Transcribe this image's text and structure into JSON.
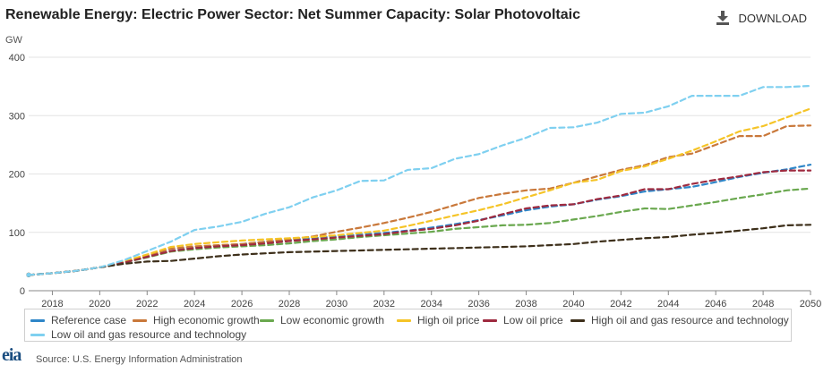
{
  "header": {
    "title": "Renewable Energy: Electric Power Sector: Net Summer Capacity: Solar Photovoltaic",
    "download_label": "DOWNLOAD",
    "unit_label": "GW"
  },
  "footer": {
    "logo_text": "eia",
    "source": "Source: U.S. Energy Information Administration"
  },
  "chart_data": {
    "type": "line",
    "title": "Renewable Energy: Electric Power Sector: Net Summer Capacity: Solar Photovoltaic",
    "ylabel": "GW",
    "xlabel": "",
    "xlim": [
      2017,
      2050
    ],
    "ylim": [
      0,
      400
    ],
    "y_ticks": [
      0,
      100,
      200,
      300,
      400
    ],
    "x_ticks": [
      2018,
      2020,
      2022,
      2024,
      2026,
      2028,
      2030,
      2032,
      2034,
      2036,
      2038,
      2040,
      2042,
      2044,
      2046,
      2048,
      2050
    ],
    "grid": "horizontal",
    "legend_position": "bottom",
    "x": [
      2017,
      2018,
      2019,
      2020,
      2021,
      2022,
      2023,
      2024,
      2025,
      2026,
      2027,
      2028,
      2029,
      2030,
      2031,
      2032,
      2033,
      2034,
      2035,
      2036,
      2037,
      2038,
      2039,
      2040,
      2041,
      2042,
      2043,
      2044,
      2045,
      2046,
      2047,
      2048,
      2049,
      2050
    ],
    "series": [
      {
        "name": "Reference case",
        "color": "#2e86c8",
        "values": [
          27,
          30,
          34,
          40,
          48,
          58,
          68,
          74,
          77,
          80,
          84,
          87,
          90,
          93,
          96,
          99,
          103,
          108,
          114,
          121,
          129,
          138,
          144,
          148,
          156,
          162,
          170,
          174,
          178,
          186,
          195,
          202,
          208,
          216
        ]
      },
      {
        "name": "High economic growth",
        "color": "#c9783a",
        "values": [
          27,
          30,
          34,
          40,
          48,
          60,
          72,
          76,
          78,
          80,
          84,
          88,
          93,
          101,
          108,
          116,
          125,
          135,
          147,
          159,
          166,
          172,
          175,
          185,
          196,
          207,
          215,
          229,
          235,
          250,
          265,
          265,
          282,
          283
        ]
      },
      {
        "name": "Low economic growth",
        "color": "#6aa84f",
        "values": [
          27,
          30,
          34,
          40,
          48,
          57,
          67,
          71,
          74,
          76,
          78,
          81,
          85,
          88,
          92,
          95,
          98,
          101,
          106,
          109,
          112,
          113,
          116,
          122,
          128,
          135,
          141,
          140,
          146,
          152,
          159,
          165,
          172,
          175
        ]
      },
      {
        "name": "High oil price",
        "color": "#f5c427",
        "values": [
          27,
          30,
          34,
          40,
          50,
          62,
          75,
          80,
          83,
          86,
          88,
          90,
          92,
          95,
          99,
          103,
          111,
          120,
          129,
          138,
          148,
          160,
          172,
          185,
          190,
          205,
          213,
          226,
          240,
          256,
          273,
          282,
          297,
          312
        ]
      },
      {
        "name": "Low oil price",
        "color": "#9e2a3f",
        "values": [
          27,
          30,
          34,
          40,
          48,
          58,
          68,
          73,
          76,
          78,
          81,
          85,
          88,
          91,
          94,
          97,
          102,
          106,
          112,
          120,
          131,
          141,
          146,
          148,
          157,
          163,
          174,
          174,
          183,
          190,
          196,
          203,
          206,
          206
        ]
      },
      {
        "name": "High oil and gas resource and technology",
        "color": "#3d2f1a",
        "values": [
          27,
          30,
          34,
          40,
          46,
          50,
          51,
          55,
          59,
          62,
          64,
          66,
          67,
          68,
          69,
          70,
          71,
          72,
          73,
          74,
          75,
          76,
          78,
          80,
          84,
          87,
          90,
          92,
          96,
          99,
          103,
          107,
          112,
          113
        ]
      },
      {
        "name": "Low oil and gas resource and technology",
        "color": "#7fd0f0",
        "values": [
          27,
          30,
          34,
          40,
          52,
          68,
          84,
          104,
          110,
          118,
          132,
          143,
          160,
          172,
          188,
          189,
          207,
          210,
          226,
          234,
          249,
          262,
          279,
          280,
          288,
          303,
          305,
          316,
          334,
          334,
          334,
          349,
          349,
          351
        ]
      }
    ]
  }
}
